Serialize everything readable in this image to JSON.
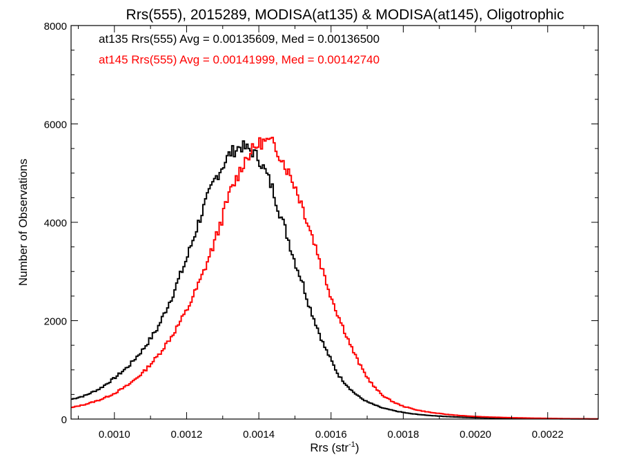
{
  "chart_data": {
    "type": "line",
    "title": "Rrs(555), 2015289, MODISA(at135) & MODISA(at145), Oligotrophic",
    "xlabel_main": "Rrs (str",
    "xlabel_sup": "-1",
    "xlabel_close": ")",
    "ylabel": "Number of Observations",
    "xlim": [
      0.00088,
      0.00234
    ],
    "ylim": [
      0,
      8000
    ],
    "x_ticks": [
      {
        "value": 0.001,
        "label": "0.0010"
      },
      {
        "value": 0.0012,
        "label": "0.0012"
      },
      {
        "value": 0.0014,
        "label": "0.0014"
      },
      {
        "value": 0.0016,
        "label": "0.0016"
      },
      {
        "value": 0.0018,
        "label": "0.0018"
      },
      {
        "value": 0.002,
        "label": "0.0020"
      },
      {
        "value": 0.0022,
        "label": "0.0022"
      }
    ],
    "y_ticks": [
      {
        "value": 0,
        "label": "0"
      },
      {
        "value": 2000,
        "label": "2000"
      },
      {
        "value": 4000,
        "label": "4000"
      },
      {
        "value": 6000,
        "label": "6000"
      },
      {
        "value": 8000,
        "label": "8000"
      }
    ],
    "annotations": [
      {
        "text": "at135 Rrs(555) Avg = 0.00135609, Med = 0.00136500",
        "color": "#000000"
      },
      {
        "text": "at145 Rrs(555) Avg = 0.00141999, Med = 0.00142740",
        "color": "#ff0000"
      }
    ],
    "grid": false,
    "series": [
      {
        "color": "#000000",
        "points": [
          [
            0.00088,
            400
          ],
          [
            0.00092,
            480
          ],
          [
            0.00096,
            620
          ],
          [
            0.001,
            830
          ],
          [
            0.00104,
            1080
          ],
          [
            0.00108,
            1420
          ],
          [
            0.00112,
            1850
          ],
          [
            0.00116,
            2500
          ],
          [
            0.0012,
            3250
          ],
          [
            0.00124,
            4150
          ],
          [
            0.00128,
            4900
          ],
          [
            0.00132,
            5400
          ],
          [
            0.00135,
            5550
          ],
          [
            0.00138,
            5450
          ],
          [
            0.0014,
            5300
          ],
          [
            0.00142,
            5000
          ],
          [
            0.00144,
            4650
          ],
          [
            0.00146,
            4150
          ],
          [
            0.00148,
            3700
          ],
          [
            0.0015,
            3200
          ],
          [
            0.00152,
            2800
          ],
          [
            0.00154,
            2300
          ],
          [
            0.00156,
            1900
          ],
          [
            0.00158,
            1500
          ],
          [
            0.0016,
            1200
          ],
          [
            0.00162,
            900
          ],
          [
            0.00164,
            720
          ],
          [
            0.00166,
            560
          ],
          [
            0.00168,
            440
          ],
          [
            0.0017,
            350
          ],
          [
            0.00174,
            230
          ],
          [
            0.00178,
            160
          ],
          [
            0.00182,
            110
          ],
          [
            0.00186,
            80
          ],
          [
            0.0019,
            60
          ],
          [
            0.00195,
            40
          ],
          [
            0.002,
            28
          ],
          [
            0.00205,
            20
          ],
          [
            0.0021,
            14
          ],
          [
            0.00215,
            10
          ],
          [
            0.0022,
            8
          ],
          [
            0.00225,
            5
          ],
          [
            0.0023,
            3
          ],
          [
            0.00234,
            2
          ]
        ]
      },
      {
        "color": "#ff0000",
        "points": [
          [
            0.00088,
            230
          ],
          [
            0.00092,
            300
          ],
          [
            0.00096,
            390
          ],
          [
            0.001,
            520
          ],
          [
            0.00104,
            700
          ],
          [
            0.00108,
            950
          ],
          [
            0.00112,
            1280
          ],
          [
            0.00116,
            1700
          ],
          [
            0.0012,
            2200
          ],
          [
            0.00124,
            2850
          ],
          [
            0.00128,
            3650
          ],
          [
            0.00132,
            4600
          ],
          [
            0.00136,
            5250
          ],
          [
            0.00138,
            5450
          ],
          [
            0.0014,
            5600
          ],
          [
            0.00142,
            5650
          ],
          [
            0.00144,
            5600
          ],
          [
            0.00146,
            5350
          ],
          [
            0.00148,
            5050
          ],
          [
            0.0015,
            4750
          ],
          [
            0.00152,
            4350
          ],
          [
            0.00154,
            3900
          ],
          [
            0.00156,
            3450
          ],
          [
            0.00158,
            2950
          ],
          [
            0.0016,
            2500
          ],
          [
            0.00162,
            2100
          ],
          [
            0.00164,
            1750
          ],
          [
            0.00166,
            1400
          ],
          [
            0.00168,
            1100
          ],
          [
            0.0017,
            850
          ],
          [
            0.00172,
            650
          ],
          [
            0.00174,
            500
          ],
          [
            0.00176,
            400
          ],
          [
            0.00178,
            320
          ],
          [
            0.0018,
            260
          ],
          [
            0.00184,
            180
          ],
          [
            0.00188,
            130
          ],
          [
            0.00192,
            95
          ],
          [
            0.00196,
            70
          ],
          [
            0.002,
            52
          ],
          [
            0.00205,
            38
          ],
          [
            0.0021,
            28
          ],
          [
            0.00215,
            20
          ],
          [
            0.0022,
            14
          ],
          [
            0.00225,
            9
          ],
          [
            0.0023,
            5
          ],
          [
            0.00234,
            3
          ]
        ]
      }
    ]
  }
}
